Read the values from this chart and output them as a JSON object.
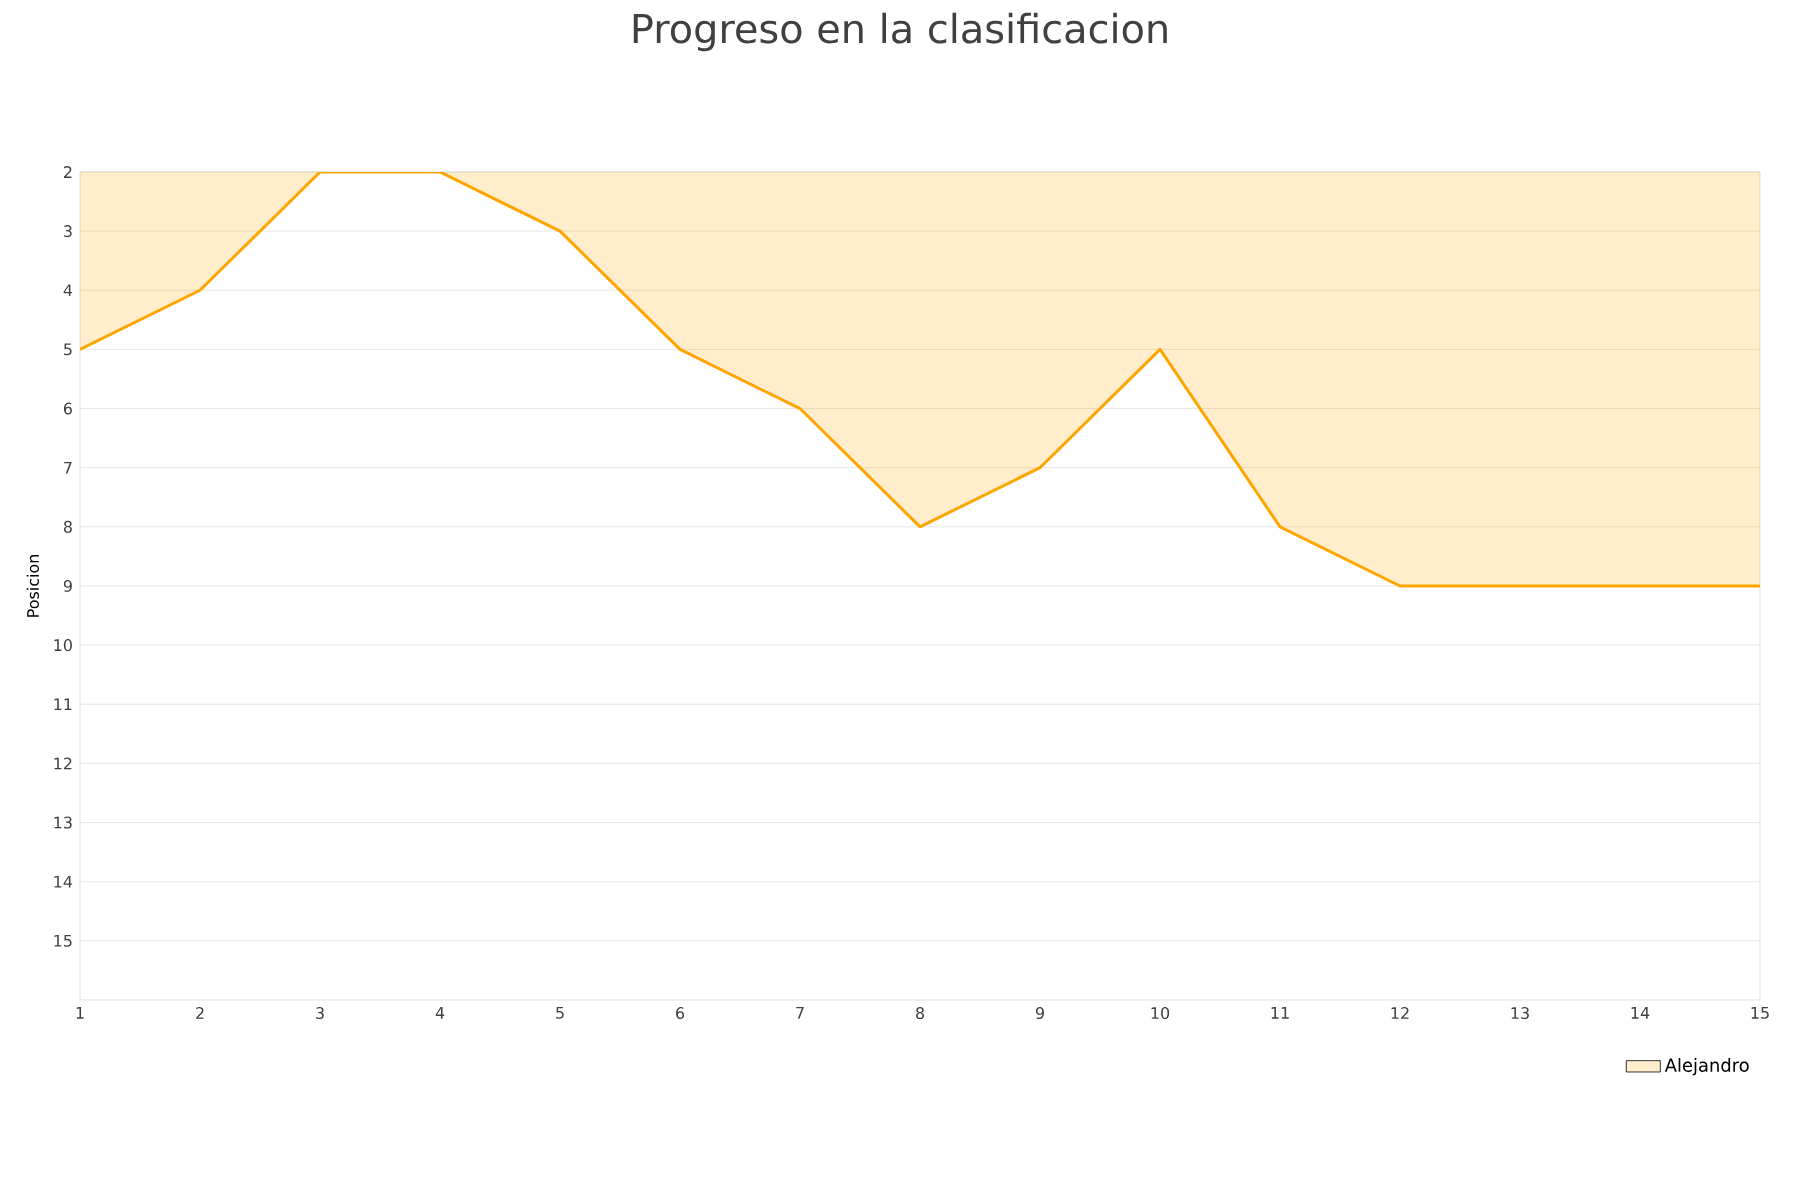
{
  "chart_data": {
    "type": "area",
    "title": "Progreso en la clasificacion",
    "ylabel": "Posicion",
    "x": [
      1,
      2,
      3,
      4,
      5,
      6,
      7,
      8,
      9,
      10,
      11,
      12,
      13,
      14,
      15
    ],
    "series": [
      {
        "name": "Alejandro",
        "color": "#ffa500",
        "values": [
          5,
          4,
          2,
          2,
          3,
          5,
          6,
          8,
          7,
          5,
          8,
          9,
          9,
          9,
          9
        ]
      }
    ],
    "xlim": [
      1,
      15
    ],
    "xticks": [
      1,
      2,
      3,
      4,
      5,
      6,
      7,
      8,
      9,
      10,
      11,
      12,
      13,
      14,
      15
    ],
    "ylim": [
      16,
      2
    ],
    "yticks": [
      2,
      3,
      4,
      5,
      6,
      7,
      8,
      9,
      10,
      11,
      12,
      13,
      14,
      15
    ],
    "grid": "y",
    "legend": "bottom right",
    "marker": "none"
  }
}
